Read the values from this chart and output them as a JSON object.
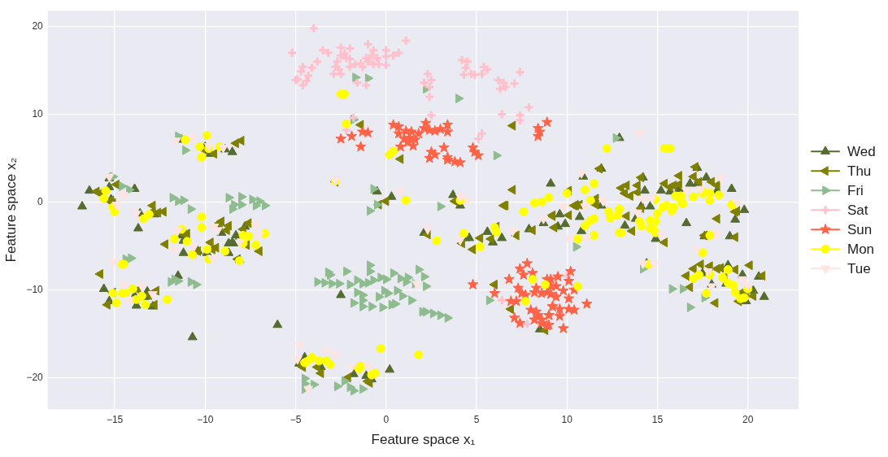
{
  "chart_data": {
    "type": "scatter",
    "xlabel": "Feature space x₁",
    "ylabel": "Feature space x₂",
    "xlim": [
      -18.7,
      22.8
    ],
    "ylim": [
      -23.6,
      21.8
    ],
    "xticks": [
      -15,
      -10,
      -5,
      0,
      5,
      10,
      15,
      20
    ],
    "yticks": [
      -20,
      -10,
      0,
      10,
      20
    ],
    "grid": true,
    "legend": "right",
    "series": [
      {
        "name": "Wed",
        "color": "#556b2f",
        "marker": "triangle",
        "x": [
          -11.3,
          -10,
          -9.7,
          -8.9,
          -8.5,
          -16.4,
          -15.3,
          -15.3,
          -13.9,
          -15.2,
          -16.8,
          -13.6,
          -13.7,
          -12.8,
          -11.3,
          -11.2,
          -11.2,
          -10.4,
          -9.9,
          -9.1,
          -9.3,
          -8.7,
          -8.5,
          -8.3,
          -8.7,
          -8.3,
          -7.8,
          -8.1,
          -11.5,
          -15.6,
          -15.3,
          -13.9,
          -13.3,
          -13.8,
          -12.9,
          -13.2,
          -6,
          -10.7,
          -2.5,
          2.1,
          4.4,
          4.6,
          5.6,
          5.9,
          6.4,
          8.7,
          7.9,
          8.5,
          0.2,
          -4.8,
          -4.5,
          -1.8,
          -1.1,
          -0.8,
          -3.6,
          -0.5,
          0.3,
          3.7,
          4.1,
          9.1,
          12.9,
          10.9,
          11.9,
          10.6,
          11.9,
          14.2,
          14.3,
          15.2,
          15.7,
          16.2,
          16.8,
          17.2,
          17.7,
          18.3,
          17.2,
          19.1,
          19.8,
          14.1,
          14.6,
          9.6,
          9.5,
          9.9,
          10.7,
          10.8,
          13.2,
          13.8,
          14.9,
          16.6,
          17.6,
          19,
          19.3,
          14.4,
          17.5,
          18,
          18.8,
          18.9,
          19.7,
          20.6,
          20.9,
          20.3,
          19.9
        ],
        "values": [
          7.1,
          6.3,
          5.5,
          6,
          5.7,
          1.3,
          1.7,
          2.7,
          1.5,
          0.3,
          -0.5,
          -1.3,
          -3,
          -1.4,
          -3.8,
          -4.4,
          -5.8,
          -5.6,
          -5.8,
          -3.5,
          -2.8,
          -4.7,
          -4.6,
          -4.7,
          -5.8,
          -3.8,
          -2.8,
          -6.6,
          -8.4,
          -9.9,
          -11.3,
          -10.7,
          -10.8,
          -11.8,
          -11.9,
          -10.2,
          -14,
          -15.4,
          -10.6,
          -3.5,
          -4.1,
          -4.1,
          -3.4,
          -4.6,
          -4.1,
          -2.4,
          -3.1,
          -14.5,
          -19.1,
          -18.4,
          -17.7,
          -19.6,
          -19.8,
          -20.2,
          -18.8,
          1.2,
          0.6,
          0.8,
          -0.4,
          2.1,
          7.3,
          2.9,
          3.8,
          -0.4,
          -0.4,
          2.8,
          1.3,
          1.3,
          1.2,
          1.5,
          2.1,
          2.1,
          2.8,
          1.3,
          3.9,
          1.5,
          -0.9,
          -0.5,
          -0.5,
          -1.4,
          -2.8,
          -2.5,
          -1.7,
          -3.3,
          -2.7,
          -1.9,
          -4.2,
          -2.4,
          -3.9,
          -3.9,
          -2,
          -7,
          -8.1,
          -9.4,
          -9.3,
          -7.2,
          -8.3,
          -8.5,
          -10.8,
          -10.1,
          -11.3
        ]
      },
      {
        "name": "Thu",
        "color": "#808000",
        "marker": "triangle-left",
        "x": [
          -8,
          -8.3,
          -9.5,
          -10,
          -14.9,
          -16,
          -15.8,
          -15.2,
          -15.1,
          -12.9,
          -12.6,
          -12.3,
          -12.9,
          -12.2,
          -11.2,
          -11,
          -10.4,
          -9.7,
          -9.4,
          -9.6,
          -9.1,
          -9.2,
          -8.7,
          -8.8,
          -7.6,
          -7.9,
          -7.7,
          -7,
          -8.2,
          -15.8,
          -15.1,
          -15.4,
          -13.7,
          -12.7,
          -13.1,
          -12.8,
          -4.7,
          -0.4,
          2.3,
          4.2,
          4.8,
          5.2,
          5.8,
          6.1,
          7.2,
          8.1,
          9.2,
          6.6,
          6,
          6.9,
          8.8,
          -4.6,
          -3.8,
          -3.6,
          -2.1,
          -1,
          -0.9,
          -1.4,
          0.8,
          0,
          7,
          7,
          6.5,
          3.8,
          -2.8,
          11.8,
          14.1,
          17.1,
          16.2,
          17,
          15.4,
          16.2,
          18,
          18.3,
          13.9,
          13.3,
          13,
          13.2,
          13.5,
          13.9,
          15.7,
          15.9,
          17.3,
          14.1,
          11.6,
          10.7,
          10.4,
          10.1,
          9.2,
          10.1,
          10.5,
          9.3,
          11.6,
          13.3,
          13.6,
          15.4,
          17.6,
          19.3,
          19.3,
          19.4,
          18.3,
          16.6,
          17,
          17.4,
          17.9,
          18.3,
          18.5,
          19.3,
          20.1,
          20.8,
          16.8,
          18.2,
          19.6,
          19.9,
          20.3,
          19.5,
          18.7
        ],
        "values": [
          7,
          6.7,
          5.5,
          5.9,
          2,
          1.2,
          1,
          0.2,
          -0.1,
          -0.4,
          -1.2,
          -1.1,
          -1.1,
          -4.8,
          -3.6,
          -3.6,
          -5.6,
          -4.6,
          -5.2,
          -5.4,
          -2.2,
          -2.4,
          -2.7,
          -3.2,
          -2.4,
          -3.1,
          -4.9,
          -5.6,
          -6.5,
          -8.2,
          -10.3,
          -11.7,
          -10,
          -10.1,
          -10.6,
          -11.7,
          -18.4,
          -0.3,
          -3.7,
          -4.7,
          -5.4,
          -4.1,
          -4.2,
          -2.8,
          -3.8,
          -3.2,
          -1.5,
          -0.4,
          -9.4,
          -12.2,
          -14.6,
          -18.8,
          -18.8,
          -19.5,
          -20,
          -20.4,
          -20.6,
          8.8,
          4.9,
          0.1,
          1.4,
          8.7,
          -0.4,
          0.1,
          2.3,
          3.8,
          2.8,
          4,
          3,
          2.9,
          2.1,
          2,
          2.3,
          1.9,
          1.9,
          1.9,
          1.6,
          1,
          0.7,
          1.1,
          1.7,
          1.9,
          2.3,
          -0.7,
          0.4,
          -0.3,
          -0.4,
          1.3,
          -1.6,
          -1.5,
          -0.4,
          -2.9,
          -0.3,
          -1.6,
          -3.3,
          -4.6,
          -3.8,
          -4,
          -1.1,
          -1,
          -1.9,
          -8.4,
          -7.6,
          -7.1,
          -7.3,
          -7.6,
          -7.5,
          -7.7,
          -7.2,
          -8.4,
          -9.7,
          -11.5,
          -10.4,
          -10.4,
          -10.7,
          -11.3,
          -8.6
        ]
      },
      {
        "name": "Fri",
        "color": "#8fbc8f",
        "marker": "triangle-right",
        "x": [
          -0.9,
          -0.9,
          -3.2,
          -2.2,
          -3.1,
          -3.8,
          -3.4,
          -3,
          -2.6,
          -2,
          -1.6,
          -1.3,
          -1,
          -0.7,
          -0.3,
          0,
          0.4,
          0.8,
          1.2,
          1.1,
          1.8,
          2.1,
          2.2,
          1.6,
          -0.1,
          0.1,
          0.6,
          0.9,
          -1.6,
          -1.3,
          -1.3,
          -1.8,
          -1.3,
          -0.8,
          -0.4,
          -0.2,
          0.3,
          0.5,
          1.4,
          2,
          2.2,
          2.6,
          3,
          3.4,
          5.7,
          -4.5,
          -4.5,
          -4,
          -4.5,
          -2.7,
          -2.3,
          -2,
          -1.8,
          -1.3,
          -11.5,
          -11.1,
          -15.1,
          -14.6,
          -14.2,
          -11.8,
          -11.5,
          -11.2,
          -10.8,
          -8.7,
          -8,
          -8.4,
          -8,
          -7.4,
          -7,
          -6.7,
          -8.5,
          -7.2,
          -14.4,
          -14.1,
          -11.9,
          -11.7,
          -11.5,
          -10.8,
          -10.5,
          -1.7,
          -1,
          2.2,
          4,
          -1.8,
          6.1,
          -0.7,
          -0.5,
          -0.9,
          3,
          12.7,
          10.5,
          15.8,
          16.4,
          17.6,
          16.8,
          14.2
        ],
        "values": [
          -7.2,
          -7.9,
          -8,
          -7.9,
          -8.3,
          -9.1,
          -9.2,
          -9.3,
          -9.3,
          -9.4,
          -8.9,
          -9.3,
          -9.2,
          -8.9,
          -8.6,
          -8.8,
          -8.1,
          -8.7,
          -8.6,
          -9.1,
          -7.7,
          -8.5,
          -9.6,
          -9.3,
          -10.1,
          -10.4,
          -10.1,
          -10.7,
          -10.3,
          -10.6,
          -11.2,
          -11.5,
          -11.9,
          -11.9,
          -10.8,
          -12,
          -11.7,
          -11.6,
          -11.2,
          -12.5,
          -12.5,
          -12.7,
          -12.9,
          -13.2,
          -11.2,
          -20.1,
          -20.7,
          -20.8,
          -21.3,
          -21,
          -20.4,
          -21.1,
          -21.5,
          -21.3,
          7.5,
          5.9,
          2.9,
          1.8,
          1.4,
          0.5,
          0.1,
          0.2,
          -0.8,
          0.5,
          0.6,
          -0.3,
          -0.3,
          0.3,
          0.1,
          -0.4,
          -0.8,
          -0.4,
          -6.5,
          -6.4,
          -9.1,
          -8.8,
          -9,
          -9.1,
          -9.4,
          14.2,
          14.1,
          12.9,
          11.8,
          9.4,
          5.3,
          1.5,
          -0.3,
          -1,
          -0.5,
          7.3,
          -5.1,
          -9.9,
          -9.9,
          -10.9,
          -12,
          -7.6
        ]
      },
      {
        "name": "Sat",
        "color": "#ffc0cb",
        "marker": "cross",
        "x": [
          -4,
          1.1,
          -3.5,
          -3.2,
          -2.5,
          -2,
          -1,
          -0.7,
          0,
          0.7,
          -2.5,
          -2.3,
          -2.2,
          -2,
          -1.1,
          -0.8,
          -0.5,
          0,
          0.4,
          -1.4,
          -1,
          -1.7,
          -2,
          -1.3,
          -0.7,
          -0.4,
          0,
          -3.8,
          -2.7,
          -2.8,
          -2.6,
          -2.9,
          -2.5,
          -1.6,
          -1.1,
          -4.6,
          -4.7,
          -4.1,
          -4.3,
          -4.4,
          -4.6,
          -4.9,
          -5.2,
          -5,
          2.3,
          2.5,
          2.1,
          2.4,
          2.4,
          2.5,
          4.2,
          4.5,
          4.4,
          4.3,
          4.7,
          4.9,
          5.4,
          5.6,
          5.3,
          6.2,
          6.5,
          6.3,
          6.6,
          7.1,
          7.4,
          6.4,
          7.4,
          7.4,
          7.9,
          -1.8,
          -2.2,
          5.3,
          5.1,
          6.4,
          7.8,
          10
        ],
        "values": [
          19.8,
          18.4,
          17.3,
          17,
          17.6,
          17.5,
          18,
          17.3,
          17.3,
          17,
          16.7,
          16.9,
          16.4,
          16.3,
          16.4,
          16.7,
          16.4,
          16.6,
          16.7,
          15.8,
          16,
          15.7,
          15.4,
          15.4,
          15.7,
          15.7,
          15.6,
          16,
          16,
          15.4,
          15.1,
          14.6,
          14.6,
          13.6,
          13.3,
          15.4,
          14.9,
          15.3,
          14.4,
          13.8,
          13.3,
          14,
          17,
          13.9,
          14.6,
          13.9,
          13.6,
          13.1,
          12,
          9.9,
          16.2,
          16,
          15.3,
          14.5,
          14.6,
          14.5,
          15.4,
          15.1,
          14.6,
          13.9,
          13.6,
          12.9,
          13.1,
          13.5,
          14.8,
          10,
          9.9,
          9.3,
          10.8,
          9.6,
          8.2,
          7.8,
          7.2,
          -11.2,
          -13.9,
          -8.4
        ]
      },
      {
        "name": "Sun",
        "color": "#ff6347",
        "marker": "star",
        "x": [
          -2.5,
          -1.9,
          -1.3,
          -1,
          -1.4,
          0.4,
          0.7,
          0.7,
          1.1,
          1.4,
          1,
          1.3,
          1.2,
          1.6,
          1.5,
          0.8,
          1.8,
          2.1,
          2.2,
          2.4,
          2.7,
          3,
          3.4,
          3.4,
          3.2,
          2.5,
          2.7,
          2.4,
          3.4,
          3.4,
          3.8,
          4.1,
          4.8,
          4.9,
          5.1,
          8.4,
          8.5,
          8.4,
          8.9,
          4.8,
          6,
          6.8,
          7.8,
          7.4,
          7.6,
          8.1,
          7.3,
          7.5,
          7.7,
          8.2,
          8.3,
          8.6,
          8.9,
          9.1,
          8.9,
          6.9,
          7.2,
          8,
          8.3,
          8.4,
          8.6,
          9,
          8.2,
          7.4,
          7.1,
          8.6,
          9.2,
          8.9,
          10.2,
          9.5,
          9.1,
          10.1,
          9.4,
          9.8,
          9.1,
          9.4,
          10.1,
          10.4,
          11.1,
          9.2,
          9.6,
          10.1,
          10.4,
          9,
          9.6,
          9,
          9.8
        ],
        "values": [
          7.2,
          7.5,
          8,
          7.9,
          6.3,
          8.8,
          8.6,
          7.8,
          8.1,
          8,
          7.2,
          7.3,
          6.8,
          7.1,
          6.4,
          6.3,
          7.8,
          8.4,
          9,
          8.2,
          8.1,
          8.3,
          8.8,
          8,
          6.2,
          5.7,
          5.4,
          5,
          5.1,
          4.8,
          4.6,
          4.5,
          6.2,
          5.7,
          5.3,
          8.4,
          8,
          7.5,
          9.1,
          -9.4,
          -10.4,
          -8.8,
          -7,
          -7.6,
          -8.3,
          -8.1,
          -9.8,
          -10.4,
          -10.6,
          -10.3,
          -9.8,
          -10.4,
          -10.3,
          -9.6,
          -8.8,
          -11.3,
          -11.3,
          -12.3,
          -12.5,
          -12.9,
          -13.4,
          -12.9,
          -13.4,
          -13.8,
          -13.2,
          -13.8,
          -11.9,
          -14.1,
          -7.9,
          -8.5,
          -8.8,
          -9,
          -9.6,
          -10.1,
          -10.5,
          -10.8,
          -11,
          -10,
          -11.6,
          -11.9,
          -12.2,
          -12.2,
          -12.3,
          -12.9,
          -13,
          -14,
          -14.4
        ]
      },
      {
        "name": "Mon",
        "color": "#ffff00",
        "marker": "circle",
        "x": [
          -9.9,
          -11.1,
          -10.3,
          -10.2,
          -9.2,
          -9.8,
          -15.5,
          -15.6,
          -15.1,
          -15,
          -13.4,
          -13.1,
          -10.2,
          -10.2,
          -11.3,
          -11.7,
          -11,
          -10.7,
          -9.8,
          -9.9,
          -8.9,
          -7.9,
          -7.6,
          -7.9,
          -7.2,
          -6.7,
          -8.1,
          -14.6,
          -14.5,
          -15.1,
          -14.6,
          -14.4,
          -14,
          -13.8,
          -13.3,
          -12.1,
          -14.9,
          -13.5,
          -4.5,
          1.1,
          2.8,
          4.3,
          5.2,
          6,
          6.1,
          7.6,
          8.2,
          8.6,
          8.1,
          8.8,
          7.7,
          -0.3,
          1.8,
          -4.4,
          -4.2,
          -4.1,
          -3.7,
          -3.3,
          -3.1,
          -1.5,
          -1.4,
          -0.8,
          -0.6,
          -2.5,
          -2.3,
          -2.2,
          0.2,
          0.4,
          -2.8,
          4.1,
          9,
          12.2,
          15.4,
          15.7,
          11.5,
          11,
          10,
          11.3,
          14.9,
          16,
          16.3,
          16.3,
          16.4,
          17,
          17.5,
          17.5,
          17.9,
          17.9,
          18.4,
          19.1,
          15.3,
          15.5,
          15.9,
          12.3,
          12.9,
          12.4,
          12.8,
          12.9,
          13,
          11.3,
          11,
          11.5,
          11.5,
          10.6,
          14.1,
          14.6,
          14,
          14.6,
          14.9,
          14.8,
          14.9,
          15,
          15.8,
          19.2,
          17.9,
          17.5,
          10.6,
          14.5,
          17,
          17.3,
          17.9,
          17.7,
          18.6,
          18.9,
          18.9,
          19.2,
          19.3,
          19.6,
          19.8,
          20
        ],
        "values": [
          7.6,
          7.1,
          6.3,
          5.1,
          6.3,
          6.1,
          1.3,
          0.4,
          -0.6,
          -1.1,
          -1.9,
          -1.4,
          -1.7,
          -2.9,
          -3.1,
          -4.2,
          -4.5,
          -6,
          -6.5,
          -5.4,
          -5.6,
          -3.8,
          -3.9,
          -4.7,
          -4.9,
          -3.6,
          -6.7,
          -7.1,
          -7.1,
          -10.4,
          -10.4,
          -10.4,
          -9.9,
          -11.1,
          -11.7,
          -11.1,
          -11.5,
          -10.7,
          -18.3,
          0.2,
          -4.4,
          -3.6,
          -5.1,
          -2.9,
          -3.4,
          -1.1,
          -0.1,
          0,
          -8.8,
          -9.4,
          -11.3,
          -16.7,
          -17.4,
          -18.2,
          -17.9,
          -17.7,
          -18.1,
          -18.1,
          -18.5,
          -19,
          -18.7,
          -19.7,
          -19.5,
          12.3,
          12.3,
          8.9,
          5.4,
          5.8,
          2.4,
          0.2,
          0.5,
          6.1,
          6.1,
          6.1,
          2.1,
          1.4,
          1,
          0.2,
          0.3,
          0.7,
          0.7,
          0.2,
          -0.2,
          0.6,
          1.3,
          1,
          1,
          0.2,
          0.8,
          -0.3,
          -0.6,
          -0.4,
          -0.6,
          -1.1,
          -0.8,
          -1.8,
          -1.5,
          -3.5,
          -3.5,
          -2.1,
          -2.7,
          -1.9,
          -3.8,
          -4.2,
          -2.7,
          -3,
          -2.2,
          -2.1,
          -2.2,
          -3.2,
          -3.5,
          -1.3,
          -1,
          -0.3,
          -3.8,
          -5.8,
          -9.6,
          -7.1,
          -8.7,
          -8.3,
          -8.3,
          -10.4,
          -8.6,
          -7.7,
          -9.2,
          -9.5,
          -10.3,
          -11,
          -10.9,
          -9.9
        ]
      },
      {
        "name": "Tue",
        "color": "#ffe4e1",
        "marker": "triangle-down",
        "x": [
          -11.6,
          -10.7,
          -9.8,
          -9,
          -15.3,
          -14.5,
          -14.9,
          -13.8,
          -11.5,
          -11.7,
          -10.6,
          -9.5,
          -9.3,
          -9.6,
          -8.1,
          -7.2,
          -7,
          -15.1,
          -14.5,
          -13.5,
          -14.2,
          -12.9,
          -4.8,
          -4.9,
          1.7,
          -3.3,
          -2.8,
          -1.9,
          -1,
          -4.3,
          7,
          8.7,
          2.3,
          4.1,
          -2.8,
          0.8,
          4.5,
          4.1,
          14,
          10.8,
          18.5,
          16.6,
          17.4,
          14.2,
          14.7,
          12,
          9.8,
          19.4,
          10.1,
          11.1,
          11,
          13.9,
          15.2,
          18.3,
          17.2,
          17.8,
          19.7,
          20,
          18,
          14.2,
          14.8
        ],
        "values": [
          7,
          7.4,
          6.4,
          6.2,
          2.9,
          0.8,
          -0.3,
          -1.3,
          -3.2,
          -5.4,
          -5,
          -2.8,
          -3.2,
          -6.4,
          -4.6,
          -2.7,
          -3.7,
          -6.8,
          -9.4,
          -9.6,
          -11.1,
          -10.5,
          -16.3,
          -17.9,
          -9.3,
          -16.9,
          -17.3,
          -18.8,
          -18.7,
          -21.3,
          -3.3,
          -1.9,
          -3.1,
          -4.3,
          2.5,
          1.3,
          0.2,
          0.6,
          7.9,
          3.3,
          2.8,
          1.3,
          1.5,
          0.4,
          0.4,
          0.1,
          -0.5,
          -0.1,
          -4.1,
          -4.1,
          -0.5,
          -1.2,
          -3.7,
          -3.6,
          -5.4,
          -7.9,
          -8.8,
          -9.5,
          -9.6,
          -7,
          -7.1
        ]
      }
    ]
  }
}
